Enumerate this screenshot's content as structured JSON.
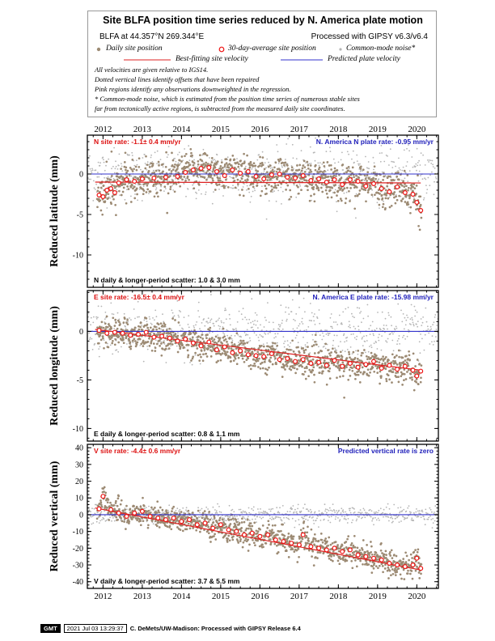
{
  "header": {
    "title": "Site BLFA position time series reduced by N. America plate motion",
    "site_line": "BLFA at 44.357°N 269.344°E",
    "processed_line": "Processed with GIPSY v6.3/v6.4",
    "legend": {
      "daily": "Daily site position",
      "avg": "30-day-average site position",
      "noise": "Common-mode noise*",
      "best": "Best-fitting site velocity",
      "predicted": "Predicted plate velocity"
    },
    "notes": [
      "All velocities are given relative to IGS14.",
      "Dotted vertical lines identify offsets that have been repaired",
      "Pink regions identify any observations downweighted in the regression.",
      "* Common-mode noise, which is estimated from the position time series of numerous stable sites",
      "far from tectonically active regions, is subtracted from the measured daily site coordinates."
    ]
  },
  "footer": {
    "gmt": "GMT",
    "timestamp": "2021 Jul 03 13:29:37",
    "credit": "C. DeMets/UW-Madison: Processed with GIPSY Release 6.4"
  },
  "colors": {
    "daily": "#9c8a73",
    "noise": "#b5b5b5",
    "avg": "#ee1111",
    "predicted": "#3333cc",
    "best": "#dd2222"
  },
  "chart_data": [
    {
      "type": "scatter",
      "component": "N",
      "ylabel": "Reduced latitude (mm)",
      "xlim": [
        2011.6,
        2020.55
      ],
      "ylim": [
        -14,
        4.8
      ],
      "yticks": [
        0,
        -5,
        -10
      ],
      "xticks": [
        2012,
        2013,
        2014,
        2015,
        2016,
        2017,
        2018,
        2019,
        2020
      ],
      "rate_label": "N site rate:  -1.1± 0.4 mm/yr",
      "plate_label": "N. America N plate rate: -0.95 mm/yr",
      "scatter_label": "N daily & longer-period scatter:   1.0 &   3.0 mm",
      "best_fit": [
        [
          2011.8,
          -1.0
        ],
        [
          2020.1,
          -1.1
        ]
      ],
      "predicted": 0,
      "avg": [
        [
          2011.9,
          -2.6
        ],
        [
          2012.0,
          -2.8
        ],
        [
          2012.1,
          -2.0
        ],
        [
          2012.2,
          -1.8
        ],
        [
          2012.3,
          -2.3
        ],
        [
          2012.4,
          -1.1
        ],
        [
          2012.6,
          -0.7
        ],
        [
          2012.8,
          -0.9
        ],
        [
          2013.0,
          -0.6
        ],
        [
          2013.3,
          -0.5
        ],
        [
          2013.6,
          -0.4
        ],
        [
          2013.9,
          -0.3
        ],
        [
          2014.1,
          0.2
        ],
        [
          2014.3,
          0.5
        ],
        [
          2014.5,
          0.7
        ],
        [
          2014.7,
          0.8
        ],
        [
          2014.9,
          0.3
        ],
        [
          2015.1,
          -0.2
        ],
        [
          2015.3,
          0.5
        ],
        [
          2015.5,
          0.1
        ],
        [
          2015.7,
          0.3
        ],
        [
          2015.9,
          -0.3
        ],
        [
          2016.1,
          -0.6
        ],
        [
          2016.3,
          -0.1
        ],
        [
          2016.5,
          0.0
        ],
        [
          2016.7,
          -0.4
        ],
        [
          2016.9,
          -0.5
        ],
        [
          2017.1,
          -0.2
        ],
        [
          2017.3,
          -0.8
        ],
        [
          2017.5,
          -0.6
        ],
        [
          2017.7,
          -1.0
        ],
        [
          2017.9,
          -0.7
        ],
        [
          2018.1,
          -1.3
        ],
        [
          2018.3,
          -0.7
        ],
        [
          2018.5,
          -0.9
        ],
        [
          2018.7,
          -1.5
        ],
        [
          2018.9,
          -1.2
        ],
        [
          2019.1,
          -1.8
        ],
        [
          2019.3,
          -2.2
        ],
        [
          2019.5,
          -1.6
        ],
        [
          2019.7,
          -2.3
        ],
        [
          2019.9,
          -2.5
        ],
        [
          2020.0,
          -3.5
        ],
        [
          2020.1,
          -4.5
        ]
      ]
    },
    {
      "type": "scatter",
      "component": "E",
      "ylabel": "Reduced longitude (mm)",
      "xlim": [
        2011.6,
        2020.55
      ],
      "ylim": [
        -11.3,
        4.2
      ],
      "yticks": [
        0,
        -5,
        -10
      ],
      "xticks": [
        2012,
        2013,
        2014,
        2015,
        2016,
        2017,
        2018,
        2019,
        2020
      ],
      "rate_label": "E site rate:  -16.5± 0.4 mm/yr",
      "plate_label": "N. America E plate rate: -15.98 mm/yr",
      "scatter_label": "E daily & longer-period scatter:   0.8 &   1.1 mm",
      "best_fit": [
        [
          2011.8,
          0.2
        ],
        [
          2020.1,
          -4.0
        ]
      ],
      "predicted": 0,
      "avg": [
        [
          2011.9,
          0.1
        ],
        [
          2012.1,
          -0.2
        ],
        [
          2012.3,
          -0.1
        ],
        [
          2012.5,
          -0.2
        ],
        [
          2012.7,
          -0.4
        ],
        [
          2012.9,
          -0.3
        ],
        [
          2013.1,
          -0.1
        ],
        [
          2013.3,
          -0.6
        ],
        [
          2013.5,
          -0.5
        ],
        [
          2013.7,
          -0.7
        ],
        [
          2013.9,
          -1.0
        ],
        [
          2014.1,
          -0.8
        ],
        [
          2014.3,
          -1.2
        ],
        [
          2014.5,
          -1.5
        ],
        [
          2014.7,
          -1.1
        ],
        [
          2014.9,
          -1.9
        ],
        [
          2015.1,
          -1.6
        ],
        [
          2015.3,
          -2.2
        ],
        [
          2015.5,
          -2.0
        ],
        [
          2015.7,
          -2.4
        ],
        [
          2015.9,
          -2.5
        ],
        [
          2016.1,
          -2.6
        ],
        [
          2016.3,
          -2.3
        ],
        [
          2016.5,
          -2.9
        ],
        [
          2016.7,
          -2.8
        ],
        [
          2016.9,
          -3.1
        ],
        [
          2017.1,
          -2.9
        ],
        [
          2017.3,
          -3.3
        ],
        [
          2017.5,
          -3.2
        ],
        [
          2017.7,
          -3.5
        ],
        [
          2017.9,
          -3.0
        ],
        [
          2018.1,
          -3.6
        ],
        [
          2018.3,
          -3.3
        ],
        [
          2018.5,
          -3.7
        ],
        [
          2018.7,
          -3.4
        ],
        [
          2018.9,
          -3.1
        ],
        [
          2019.1,
          -3.8
        ],
        [
          2019.3,
          -3.5
        ],
        [
          2019.5,
          -3.9
        ],
        [
          2019.7,
          -3.6
        ],
        [
          2019.9,
          -4.0
        ],
        [
          2020.0,
          -4.6
        ],
        [
          2020.1,
          -4.1
        ]
      ]
    },
    {
      "type": "scatter",
      "component": "V",
      "ylabel": "Reduced vertical (mm)",
      "xlim": [
        2011.6,
        2020.55
      ],
      "ylim": [
        -44,
        42
      ],
      "yticks": [
        40,
        30,
        20,
        10,
        0,
        -10,
        -20,
        -30,
        -40
      ],
      "xticks": [
        2012,
        2013,
        2014,
        2015,
        2016,
        2017,
        2018,
        2019,
        2020
      ],
      "rate_label": "V site rate:  -4.4± 0.6 mm/yr",
      "plate_label": "Predicted vertical rate is zero",
      "scatter_label": "V daily & longer-period scatter:   3.7 &   5.5 mm",
      "best_fit": [
        [
          2011.8,
          4.0
        ],
        [
          2020.1,
          -33.0
        ]
      ],
      "predicted": 0,
      "avg": [
        [
          2011.9,
          3.5
        ],
        [
          2012.0,
          11.0
        ],
        [
          2012.2,
          3.0
        ],
        [
          2012.4,
          1.0
        ],
        [
          2012.6,
          -1.0
        ],
        [
          2012.8,
          1.0
        ],
        [
          2013.0,
          2.0
        ],
        [
          2013.2,
          -1.0
        ],
        [
          2013.4,
          -2.0
        ],
        [
          2013.6,
          -3.0
        ],
        [
          2013.8,
          -2.0
        ],
        [
          2014.0,
          -4.0
        ],
        [
          2014.2,
          -3.0
        ],
        [
          2014.4,
          -6.0
        ],
        [
          2014.6,
          -5.0
        ],
        [
          2014.8,
          -8.0
        ],
        [
          2015.0,
          -6.0
        ],
        [
          2015.2,
          -9.0
        ],
        [
          2015.4,
          -10.0
        ],
        [
          2015.6,
          -12.0
        ],
        [
          2015.8,
          -11.0
        ],
        [
          2016.0,
          -13.0
        ],
        [
          2016.2,
          -12.0
        ],
        [
          2016.4,
          -15.0
        ],
        [
          2016.6,
          -16.0
        ],
        [
          2016.8,
          -17.0
        ],
        [
          2017.0,
          -18.0
        ],
        [
          2017.1,
          -12.0
        ],
        [
          2017.3,
          -19.0
        ],
        [
          2017.5,
          -20.0
        ],
        [
          2017.7,
          -21.0
        ],
        [
          2017.9,
          -20.0
        ],
        [
          2018.1,
          -22.0
        ],
        [
          2018.3,
          -21.0
        ],
        [
          2018.5,
          -24.0
        ],
        [
          2018.7,
          -25.0
        ],
        [
          2018.9,
          -26.0
        ],
        [
          2019.1,
          -27.0
        ],
        [
          2019.3,
          -29.0
        ],
        [
          2019.5,
          -30.0
        ],
        [
          2019.7,
          -31.0
        ],
        [
          2019.9,
          -30.0
        ],
        [
          2020.0,
          -26.0
        ],
        [
          2020.1,
          -32.0
        ]
      ]
    }
  ]
}
